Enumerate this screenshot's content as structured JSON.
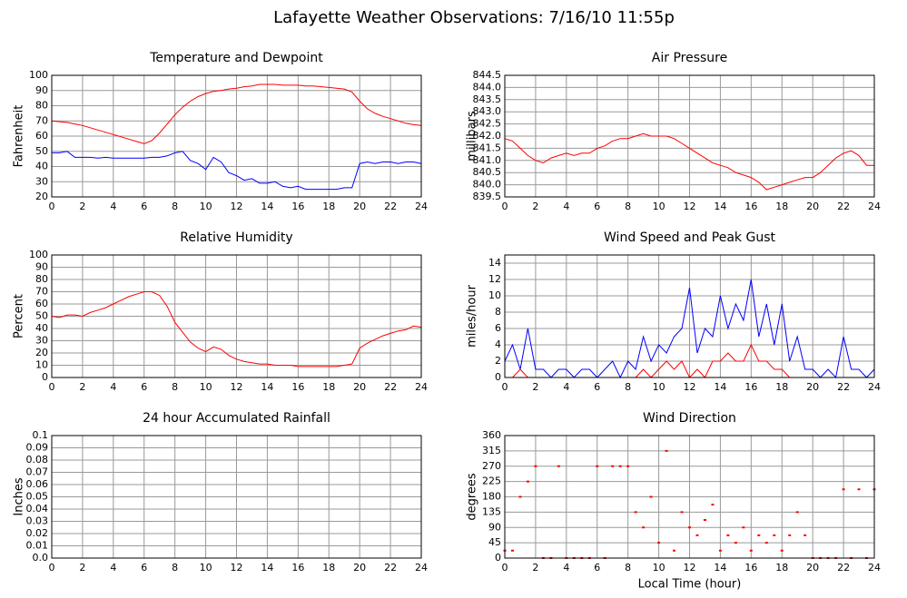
{
  "title": "Lafayette Weather Observations: 7/16/10 11:55p",
  "chart_data": [
    {
      "type": "line",
      "title": "Temperature and Dewpoint",
      "y_label": "Fahrenheit",
      "xlim": [
        0,
        24
      ],
      "xticks": [
        0,
        2,
        4,
        6,
        8,
        10,
        12,
        14,
        16,
        18,
        20,
        22,
        24
      ],
      "ylim": [
        20,
        100
      ],
      "yticks": [
        20,
        30,
        40,
        50,
        60,
        70,
        80,
        90,
        100
      ],
      "grid": true,
      "x": [
        0,
        0.5,
        1,
        1.5,
        2,
        2.5,
        3,
        3.5,
        4,
        4.5,
        5,
        5.5,
        6,
        6.5,
        7,
        7.5,
        8,
        8.5,
        9,
        9.5,
        10,
        10.5,
        11,
        11.5,
        12,
        12.5,
        13,
        13.5,
        14,
        14.5,
        15,
        15.5,
        16,
        16.5,
        17,
        17.5,
        18,
        18.5,
        19,
        19.5,
        20,
        20.5,
        21,
        21.5,
        22,
        22.5,
        23,
        23.5,
        24
      ],
      "series": [
        {
          "color": "#ff0000",
          "values": [
            70,
            69.5,
            69,
            68,
            67,
            65.5,
            64,
            62.5,
            61,
            59.5,
            58,
            56.5,
            55,
            57,
            62,
            68,
            74,
            79,
            83,
            86,
            88,
            89.5,
            90,
            91,
            91.5,
            92.5,
            93,
            94,
            94,
            94,
            93.5,
            93.5,
            93.5,
            93,
            93,
            92.5,
            92,
            91.5,
            91,
            89,
            83,
            78,
            75,
            73,
            71.5,
            70,
            68.5,
            67.5,
            67
          ]
        },
        {
          "color": "#0000ff",
          "values": [
            49,
            49,
            50,
            46,
            46,
            46,
            45.5,
            46,
            45.5,
            45.5,
            45.5,
            45.5,
            45.5,
            46,
            46,
            47,
            49,
            50,
            44,
            42,
            38,
            46,
            43,
            36,
            34,
            31,
            32,
            29,
            29,
            30,
            27,
            26,
            27,
            25,
            25,
            25,
            25,
            25,
            26,
            26,
            42,
            43,
            42,
            43,
            43,
            42,
            43,
            43,
            42
          ]
        }
      ]
    },
    {
      "type": "line",
      "title": "Air Pressure",
      "y_label": "millibars",
      "xlim": [
        0,
        24
      ],
      "xticks": [
        0,
        2,
        4,
        6,
        8,
        10,
        12,
        14,
        16,
        18,
        20,
        22,
        24
      ],
      "ylim": [
        839.5,
        844.5
      ],
      "yticks": [
        839.5,
        {
          "value": 840,
          "label": "840.0"
        },
        840.5,
        {
          "value": 841,
          "label": "841.0"
        },
        841.5,
        {
          "value": 842,
          "label": "842.0"
        },
        842.5,
        {
          "value": 843,
          "label": "843.0"
        },
        843.5,
        {
          "value": 844,
          "label": "844.0"
        },
        844.5
      ],
      "grid": true,
      "x": [
        0,
        0.5,
        1,
        1.5,
        2,
        2.5,
        3,
        3.5,
        4,
        4.5,
        5,
        5.5,
        6,
        6.5,
        7,
        7.5,
        8,
        8.5,
        9,
        9.5,
        10,
        10.5,
        11,
        11.5,
        12,
        12.5,
        13,
        13.5,
        14,
        14.5,
        15,
        15.5,
        16,
        16.5,
        17,
        17.5,
        18,
        18.5,
        19,
        19.5,
        20,
        20.5,
        21,
        21.5,
        22,
        22.5,
        23,
        23.5,
        24
      ],
      "series": [
        {
          "color": "#ff0000",
          "values": [
            841.9,
            841.8,
            841.5,
            841.2,
            841.0,
            840.9,
            841.1,
            841.2,
            841.3,
            841.2,
            841.3,
            841.3,
            841.5,
            841.6,
            841.8,
            841.9,
            841.9,
            842.0,
            842.1,
            842.0,
            842.0,
            842.0,
            841.9,
            841.7,
            841.5,
            841.3,
            841.1,
            840.9,
            840.8,
            840.7,
            840.5,
            840.4,
            840.3,
            840.1,
            839.8,
            839.9,
            840.0,
            840.1,
            840.2,
            840.3,
            840.3,
            840.5,
            840.8,
            841.1,
            841.3,
            841.4,
            841.2,
            840.8,
            840.8
          ]
        }
      ]
    },
    {
      "type": "line",
      "title": "Relative Humidity",
      "y_label": "Percent",
      "xlim": [
        0,
        24
      ],
      "xticks": [
        0,
        2,
        4,
        6,
        8,
        10,
        12,
        14,
        16,
        18,
        20,
        22,
        24
      ],
      "ylim": [
        0,
        100
      ],
      "yticks": [
        0,
        10,
        20,
        30,
        40,
        50,
        60,
        70,
        80,
        90,
        100
      ],
      "grid": true,
      "x": [
        0,
        0.5,
        1,
        1.5,
        2,
        2.5,
        3,
        3.5,
        4,
        4.5,
        5,
        5.5,
        6,
        6.5,
        7,
        7.5,
        8,
        8.5,
        9,
        9.5,
        10,
        10.5,
        11,
        11.5,
        12,
        12.5,
        13,
        13.5,
        14,
        14.5,
        15,
        15.5,
        16,
        16.5,
        17,
        17.5,
        18,
        18.5,
        19,
        19.5,
        20,
        20.5,
        21,
        21.5,
        22,
        22.5,
        23,
        23.5,
        24
      ],
      "series": [
        {
          "color": "#ff0000",
          "values": [
            50,
            49,
            51,
            51,
            50,
            53,
            55,
            57,
            60,
            63,
            66,
            68,
            70,
            70,
            67,
            58,
            45,
            37,
            29,
            24,
            21,
            25,
            23,
            18,
            15,
            13,
            12,
            11,
            11,
            10,
            10,
            10,
            9,
            9,
            9,
            9,
            9,
            9,
            10,
            11,
            24,
            28,
            31,
            34,
            36,
            38,
            39,
            42,
            41
          ]
        }
      ]
    },
    {
      "type": "line",
      "title": "Wind Speed and Peak Gust",
      "y_label": "miles/hour",
      "xlim": [
        0,
        24
      ],
      "xticks": [
        0,
        2,
        4,
        6,
        8,
        10,
        12,
        14,
        16,
        18,
        20,
        22,
        24
      ],
      "ylim": [
        0,
        15
      ],
      "yticks": [
        0,
        2,
        4,
        6,
        8,
        10,
        12,
        14
      ],
      "grid": true,
      "x": [
        0,
        0.5,
        1,
        1.5,
        2,
        2.5,
        3,
        3.5,
        4,
        4.5,
        5,
        5.5,
        6,
        6.5,
        7,
        7.5,
        8,
        8.5,
        9,
        9.5,
        10,
        10.5,
        11,
        11.5,
        12,
        12.5,
        13,
        13.5,
        14,
        14.5,
        15,
        15.5,
        16,
        16.5,
        17,
        17.5,
        18,
        18.5,
        19,
        19.5,
        20,
        20.5,
        21,
        21.5,
        22,
        22.5,
        23,
        23.5,
        24
      ],
      "series": [
        {
          "color": "#0000ff",
          "values": [
            2,
            4,
            1,
            6,
            1,
            1,
            0,
            1,
            1,
            0,
            1,
            1,
            0,
            1,
            2,
            0,
            2,
            1,
            5,
            2,
            4,
            3,
            5,
            6,
            11,
            3,
            6,
            5,
            10,
            6,
            9,
            7,
            12,
            5,
            9,
            4,
            9,
            2,
            5,
            1,
            1,
            0,
            1,
            0,
            5,
            1,
            1,
            0,
            1
          ]
        },
        {
          "color": "#ff0000",
          "values": [
            0,
            0,
            1,
            0,
            0,
            0,
            0,
            0,
            0,
            0,
            0,
            0,
            0,
            0,
            0,
            0,
            0,
            0,
            1,
            0,
            1,
            2,
            1,
            2,
            0,
            1,
            0,
            2,
            2,
            3,
            2,
            2,
            4,
            2,
            2,
            1,
            1,
            0,
            0,
            0,
            0,
            0,
            0,
            0,
            0,
            0,
            0,
            0,
            0
          ]
        }
      ]
    },
    {
      "type": "line",
      "title": "24 hour Accumulated Rainfall",
      "y_label": "Inches",
      "xlim": [
        0,
        24
      ],
      "xticks": [
        0,
        2,
        4,
        6,
        8,
        10,
        12,
        14,
        16,
        18,
        20,
        22,
        24
      ],
      "ylim": [
        0,
        0.1
      ],
      "yticks": [
        {
          "value": 0,
          "label": "0.0"
        },
        0.01,
        0.02,
        0.03,
        0.04,
        0.05,
        0.06,
        0.07,
        0.08,
        0.09,
        0.1
      ],
      "grid": true,
      "x": [
        0,
        24
      ],
      "series": [
        {
          "color": "#ff0000",
          "values": [
            0,
            0
          ]
        }
      ]
    },
    {
      "type": "scatter",
      "title": "Wind Direction",
      "y_label": "degrees",
      "x_label": "Local Time (hour)",
      "xlim": [
        0,
        24
      ],
      "xticks": [
        0,
        2,
        4,
        6,
        8,
        10,
        12,
        14,
        16,
        18,
        20,
        22,
        24
      ],
      "ylim": [
        0,
        360
      ],
      "yticks": [
        0,
        45,
        90,
        135,
        180,
        225,
        270,
        315,
        360
      ],
      "grid": true,
      "x": [
        0,
        0.5,
        1,
        1.5,
        2,
        2.5,
        3,
        3.5,
        4,
        4.5,
        5,
        5.5,
        6,
        6.5,
        7,
        7.5,
        8,
        8.5,
        9,
        9.5,
        10,
        10.5,
        11,
        11.5,
        12,
        12.5,
        13,
        13.5,
        14,
        14.5,
        15,
        15.5,
        16,
        16.5,
        17,
        17.5,
        18,
        18.5,
        19,
        19.5,
        20,
        20.5,
        21,
        21.5,
        22,
        22.5,
        23,
        23.5,
        24
      ],
      "series": [
        {
          "color": "#ff0000",
          "values": [
            22,
            22,
            180,
            225,
            270,
            0,
            0,
            270,
            0,
            0,
            0,
            0,
            270,
            0,
            270,
            270,
            270,
            135,
            90,
            180,
            45,
            315,
            22,
            135,
            90,
            67,
            112,
            157,
            22,
            67,
            45,
            90,
            22,
            67,
            45,
            67,
            22,
            67,
            135,
            67,
            0,
            0,
            0,
            0,
            202,
            0,
            202,
            0,
            202
          ]
        }
      ]
    }
  ]
}
